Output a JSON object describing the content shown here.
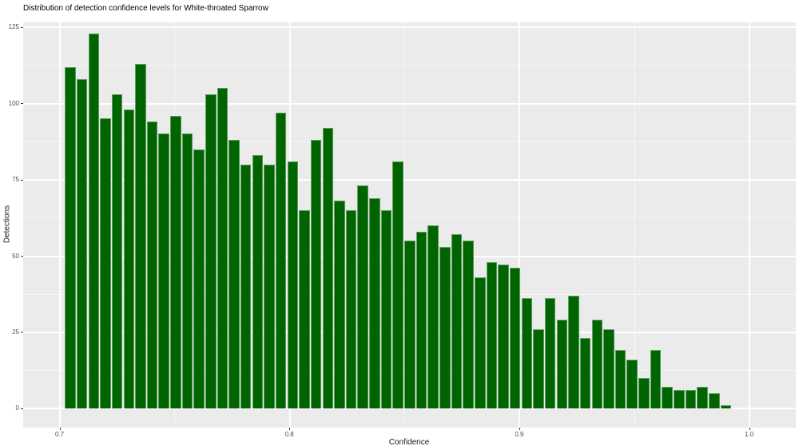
{
  "title": "Distribution of detection confidence levels for White-throated Sparrow",
  "colors": {
    "bar_fill": "#006400",
    "bar_edge": "#5d9e5d",
    "panel_background": "#ebebeb",
    "grid_major": "#ffffff",
    "grid_minor": "rgba(255,255,255,0.55)",
    "tick_label": "#4d4d4d",
    "axis_title": "#1a1a1a",
    "title": "#000000",
    "page_background": "#ffffff"
  },
  "chart_data": {
    "type": "bar",
    "subtype": "histogram",
    "title": "Distribution of detection confidence levels for White-throated Sparrow",
    "xlabel": "Confidence",
    "ylabel": "Detections",
    "legend": "none",
    "grid": "major and minor, white on gray panel",
    "x_ticks": [
      0.7,
      0.8,
      0.9,
      1.0
    ],
    "x_tick_labels": [
      "0.7",
      "0.8",
      "0.9",
      "1.0"
    ],
    "x_minor_ticks": [
      0.75,
      0.85,
      0.95
    ],
    "y_ticks": [
      0,
      25,
      50,
      75,
      100,
      125
    ],
    "y_tick_labels": [
      "0",
      "25",
      "50",
      "75",
      "100",
      "125"
    ],
    "y_minor_ticks": [
      12.5,
      37.5,
      62.5,
      87.5,
      112.5
    ],
    "xlim": [
      0.685,
      1.02
    ],
    "ylim": [
      -6.2,
      126.8
    ],
    "first_bin_start": 0.7025,
    "bin_width": 0.005,
    "values": [
      112,
      108,
      123,
      95,
      103,
      98,
      113,
      94,
      90,
      96,
      90,
      85,
      103,
      105,
      88,
      80,
      83,
      80,
      97,
      81,
      65,
      88,
      92,
      68,
      65,
      73,
      69,
      65,
      81,
      55,
      58,
      60,
      53,
      57,
      55,
      43,
      48,
      47,
      46,
      36,
      26,
      36,
      29,
      37,
      23,
      29,
      26,
      19,
      16,
      10,
      19,
      7,
      6,
      6,
      7,
      5,
      1
    ]
  }
}
